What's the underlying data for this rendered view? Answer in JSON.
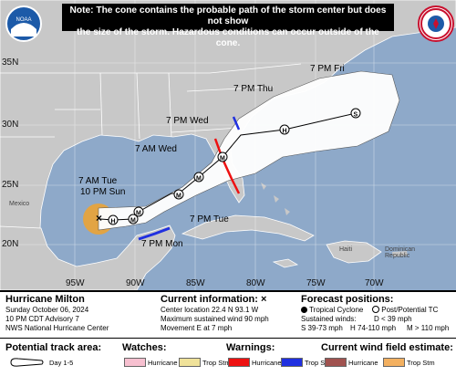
{
  "note": {
    "line1": "Note: The cone contains the probable path of the storm center but does not show",
    "line2": "the size of the storm. Hazardous conditions can occur outside of the cone."
  },
  "logos": {
    "left": "NOAA",
    "right": "NATIONAL WEATHER SERVICE"
  },
  "colors": {
    "ocean": "#8ea9c9",
    "land": "#c8c8c8",
    "cone": "#ffffff",
    "wind_field": "#e2a444",
    "warning_hurricane": "#ee1111",
    "warning_trop_storm": "#2030e0",
    "watch_hurricane": "#f7c0d0",
    "watch_trop_storm": "#f0e29a",
    "wind_field_hurricane": "#a0524f",
    "wind_field_trop_storm": "#f3b060"
  },
  "axes": {
    "latitudes": [
      "35N",
      "30N",
      "25N",
      "20N"
    ],
    "longitudes": [
      "95W",
      "90W",
      "85W",
      "80W",
      "75W",
      "70W"
    ]
  },
  "forecast_points": [
    {
      "time": "10 PM Sun",
      "symbol": "H"
    },
    {
      "time": "7 AM Tue",
      "symbol": "M"
    },
    {
      "time": "7 PM Mon",
      "symbol": "M"
    },
    {
      "time": "7 PM Tue",
      "symbol": "M"
    },
    {
      "time": "7 AM Wed",
      "symbol": "M"
    },
    {
      "time": "7 PM Wed",
      "symbol": "M"
    },
    {
      "time": "7 PM Thu",
      "symbol": "H"
    },
    {
      "time": "7 PM Fri",
      "symbol": "S"
    }
  ],
  "place_labels": [
    "Mexico",
    "Dominican Republic",
    "Haiti"
  ],
  "storm_info": {
    "name": "Hurricane Milton",
    "date": "Sunday October 06, 2024",
    "advisory": "10 PM CDT Advisory 7",
    "center": "NWS National Hurricane Center"
  },
  "current_info": {
    "title": "Current information:",
    "marker": "×",
    "location": "Center location 22.4 N 93.1 W",
    "wind": "Maximum sustained wind 90 mph",
    "movement": "Movement E at 7 mph"
  },
  "forecast_positions": {
    "title": "Forecast positions:",
    "tropical": "Tropical Cyclone",
    "post": "Post/Potential TC",
    "sustained": "Sustained winds:",
    "d": "D < 39 mph",
    "s": "S 39-73 mph",
    "h": "H 74-110 mph",
    "m": "M > 110 mph"
  },
  "legend": {
    "track_area": "Potential track area:",
    "day": "Day 1-5",
    "watches": "Watches:",
    "warnings": "Warnings:",
    "wind_field": "Current wind field estimate:",
    "hurricane": "Hurricane",
    "trop_stm": "Trop Stm"
  }
}
